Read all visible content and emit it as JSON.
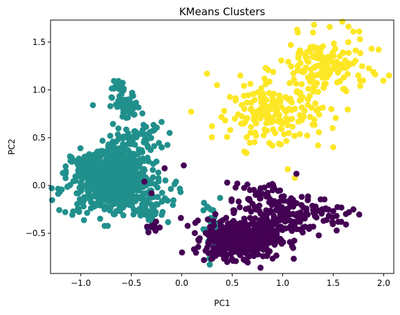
{
  "chart_data": {
    "type": "scatter",
    "title": "KMeans Clusters",
    "xlabel": "PC1",
    "ylabel": "PC2",
    "xlim": [
      -1.3,
      2.1
    ],
    "ylim": [
      -0.92,
      1.73
    ],
    "xticks": [
      -1.0,
      -0.5,
      0.0,
      0.5,
      1.0,
      1.5,
      2.0
    ],
    "xtick_labels": [
      "−1.0",
      "−0.5",
      "0.0",
      "0.5",
      "1.0",
      "1.5",
      "2.0"
    ],
    "yticks": [
      -0.5,
      0.0,
      0.5,
      1.0,
      1.5
    ],
    "ytick_labels": [
      "−0.5",
      "0.0",
      "0.5",
      "1.0",
      "1.5"
    ],
    "grid": false,
    "series": [
      {
        "color": "#21908d",
        "regions": [
          {
            "cx": -0.62,
            "cy": 0.12,
            "sx": 0.14,
            "sy": 0.16,
            "n": 520
          },
          {
            "cx": -0.9,
            "cy": 0.12,
            "sx": 0.12,
            "sy": 0.12,
            "n": 120
          },
          {
            "cx": -0.68,
            "cy": -0.08,
            "sx": 0.28,
            "sy": 0.12,
            "n": 200
          },
          {
            "cx": -0.55,
            "cy": 0.82,
            "sx": 0.07,
            "sy": 0.07,
            "n": 60
          },
          {
            "cx": -0.63,
            "cy": 1.05,
            "sx": 0.04,
            "sy": 0.04,
            "n": 18
          },
          {
            "cx": -0.4,
            "cy": 0.5,
            "sx": 0.12,
            "sy": 0.08,
            "n": 45
          },
          {
            "cx": -0.35,
            "cy": -0.3,
            "sx": 0.1,
            "sy": 0.08,
            "n": 25
          },
          {
            "cx": 0.3,
            "cy": -0.45,
            "sx": 0.05,
            "sy": 0.12,
            "n": 45
          }
        ],
        "points": [
          [
            -1.15,
            0.2
          ],
          [
            -0.88,
            0.84
          ],
          [
            -0.12,
            0.55
          ],
          [
            0.38,
            -0.13
          ],
          [
            0.25,
            -0.22
          ],
          [
            -0.2,
            0.4
          ],
          [
            -0.25,
            0.25
          ],
          [
            -1.05,
            0.05
          ]
        ]
      },
      {
        "color": "#fde725",
        "regions": [
          {
            "cx": 0.92,
            "cy": 0.75,
            "sx": 0.22,
            "sy": 0.14,
            "n": 170
          },
          {
            "cx": 1.4,
            "cy": 1.22,
            "sx": 0.22,
            "sy": 0.17,
            "n": 160
          }
        ],
        "points": [
          [
            0.25,
            1.17
          ],
          [
            0.35,
            1.05
          ],
          [
            0.58,
            1.15
          ],
          [
            0.83,
            1.23
          ],
          [
            1.08,
            1.47
          ],
          [
            1.15,
            1.6
          ],
          [
            1.3,
            1.6
          ],
          [
            1.88,
            1.43
          ],
          [
            1.95,
            1.42
          ],
          [
            1.7,
            1.61
          ],
          [
            1.5,
            0.4
          ],
          [
            1.35,
            0.42
          ],
          [
            0.98,
            0.43
          ],
          [
            1.05,
            0.17
          ],
          [
            1.12,
            0.08
          ],
          [
            0.68,
            0.55
          ],
          [
            0.42,
            0.78
          ],
          [
            0.3,
            0.62
          ]
        ]
      },
      {
        "color": "#440154",
        "regions": [
          {
            "cx": 0.6,
            "cy": -0.55,
            "sx": 0.18,
            "sy": 0.1,
            "n": 500
          },
          {
            "cx": 1.1,
            "cy": -0.3,
            "sx": 0.25,
            "sy": 0.1,
            "n": 130
          },
          {
            "cx": 0.85,
            "cy": -0.15,
            "sx": 0.18,
            "sy": 0.1,
            "n": 50
          },
          {
            "cx": -0.27,
            "cy": -0.44,
            "sx": 0.03,
            "sy": 0.03,
            "n": 12
          }
        ],
        "points": [
          [
            0.02,
            0.21
          ],
          [
            -0.37,
            0.04
          ],
          [
            0.45,
            0.03
          ],
          [
            0.55,
            0.02
          ],
          [
            0.65,
            0.01
          ],
          [
            0.78,
            -0.86
          ],
          [
            0.22,
            -0.78
          ],
          [
            0.45,
            -0.8
          ],
          [
            1.7,
            -0.25
          ],
          [
            1.55,
            -0.38
          ],
          [
            1.58,
            -0.38
          ],
          [
            -0.17,
            0.18
          ],
          [
            -0.3,
            -0.08
          ],
          [
            0.9,
            -0.05
          ]
        ]
      }
    ]
  }
}
